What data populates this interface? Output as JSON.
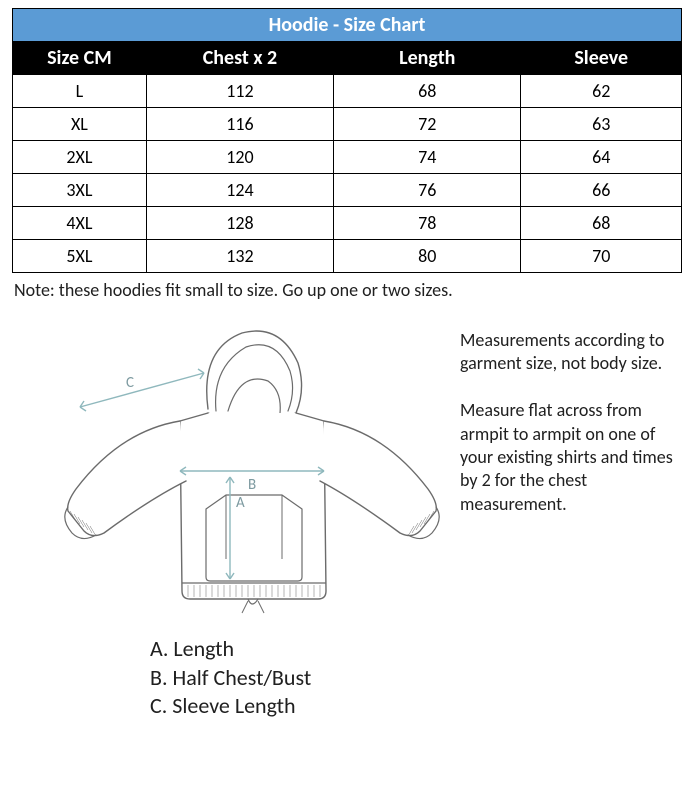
{
  "table": {
    "title": "Hoodie - Size Chart",
    "title_bg": "#5b9bd5",
    "title_fg": "#ffffff",
    "header_bg": "#000000",
    "header_fg": "#ffffff",
    "border_color": "#000000",
    "columns": [
      "Size CM",
      "Chest x 2",
      "Length",
      "Sleeve"
    ],
    "col_widths_pct": [
      20,
      28,
      28,
      24
    ],
    "rows": [
      [
        "L",
        "112",
        "68",
        "62"
      ],
      [
        "XL",
        "116",
        "72",
        "63"
      ],
      [
        "2XL",
        "120",
        "74",
        "64"
      ],
      [
        "3XL",
        "124",
        "76",
        "66"
      ],
      [
        "4XL",
        "128",
        "78",
        "68"
      ],
      [
        "5XL",
        "132",
        "80",
        "70"
      ]
    ]
  },
  "note": "Note: these hoodies fit small to size. Go up one or two sizes.",
  "diagram": {
    "stroke": "#6b6b6b",
    "measure_stroke": "#8fb8bd",
    "label_color": "#7d9aa0",
    "labels": {
      "A": "A",
      "B": "B",
      "C": "C"
    }
  },
  "legend": {
    "a": "A. Length",
    "b": "B. Half Chest/Bust",
    "c": "C. Sleeve Length"
  },
  "side_text": {
    "p1": "Measurements according to garment size, not body size.",
    "p2": "Measure flat across from armpit to armpit on one of your existing shirts and times by 2 for the chest measurement."
  }
}
